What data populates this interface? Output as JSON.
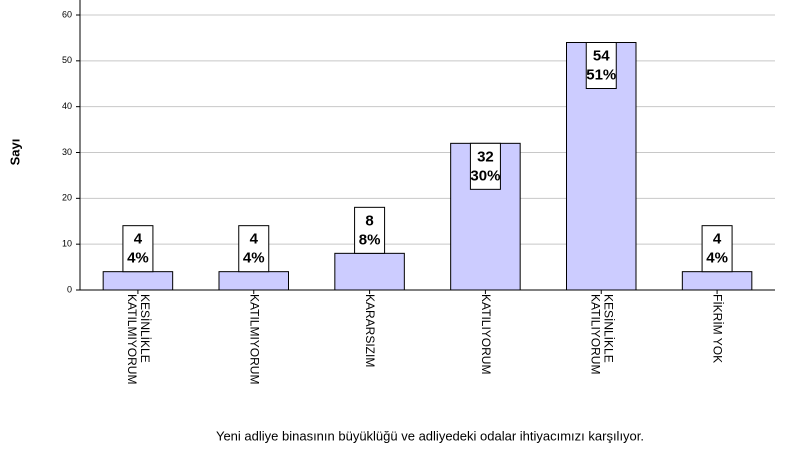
{
  "chart_data": {
    "type": "bar",
    "title": "Yeni adliye binasının büyüklüğü ve adliyedeki odalar ihtiyacımızı karşılıyor.",
    "ylabel": "Sayı",
    "categories": [
      "KESİNLİKLE KATILMIYORUM",
      "KATILMIYORUM",
      "KARARSIZIM",
      "KATILIYORUM",
      "KESİNLİKLE KATILIYORUM",
      "FİKRİM YOK"
    ],
    "values": [
      4,
      4,
      8,
      32,
      54,
      4
    ],
    "percent_labels": [
      "4%",
      "4%",
      "8%",
      "30%",
      "51%",
      "4%"
    ],
    "color": "#ccccff",
    "ylim": [
      0,
      60
    ],
    "yticks": [
      0,
      10,
      20,
      30,
      40,
      50,
      60
    ],
    "grid": true
  }
}
